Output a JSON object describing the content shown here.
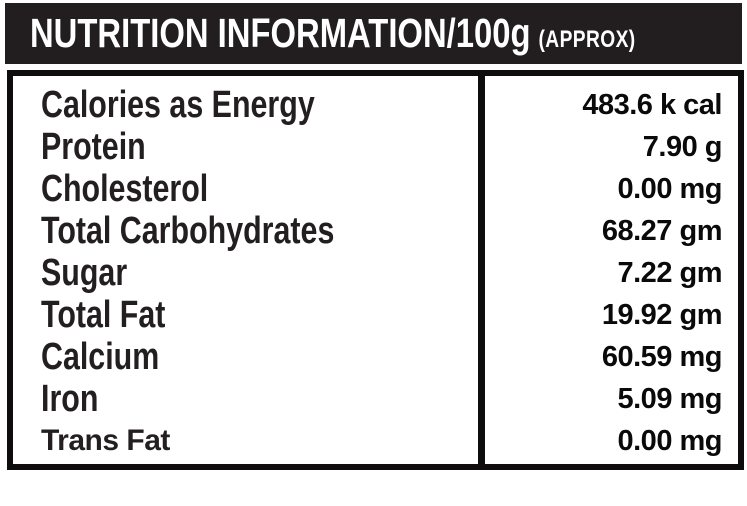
{
  "header": {
    "title": "NUTRITION INFORMATION/100g",
    "suffix": "(APPROX)"
  },
  "table": {
    "rows": [
      {
        "label": "Calories as Energy",
        "value": "483.6 k cal"
      },
      {
        "label": "Protein",
        "value": "7.90 g"
      },
      {
        "label": "Cholesterol",
        "value": "0.00 mg"
      },
      {
        "label": "Total Carbohydrates",
        "value": "68.27 gm"
      },
      {
        "label": "Sugar",
        "value": "7.22 gm"
      },
      {
        "label": "Total Fat",
        "value": "19.92 gm"
      },
      {
        "label": "Calcium",
        "value": "60.59 mg"
      },
      {
        "label": "Iron",
        "value": "5.09 mg"
      },
      {
        "label": "Trans Fat",
        "value": "0.00 mg"
      }
    ]
  },
  "colors": {
    "header_bg": "#221e1f",
    "header_text": "#ffffff",
    "label_text": "#231f20",
    "value_text": "#0a0a0a",
    "border": "#0f0c0d",
    "page_bg": "#ffffff"
  }
}
